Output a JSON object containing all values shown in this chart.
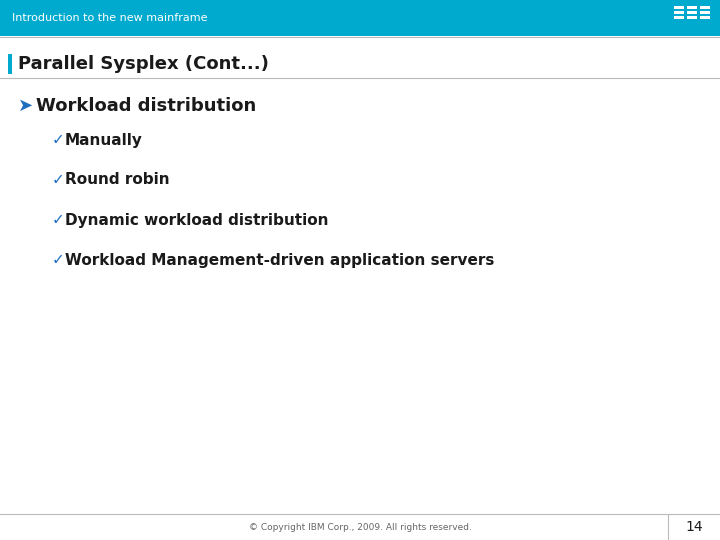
{
  "header_text": "Introduction to the new mainframe",
  "header_bg_color": "#00AACE",
  "header_text_color": "#FFFFFF",
  "slide_bg_color": "#FFFFFF",
  "title_text": "Parallel Sysplex (Cont...)",
  "title_color": "#1A1A1A",
  "title_fontsize": 13,
  "title_bar_color": "#00AACE",
  "separator_color": "#BBBBBB",
  "level1_bullet": "➤",
  "level1_text": "Workload distribution",
  "level1_color": "#1A1A1A",
  "level1_fontsize": 13,
  "level1_bullet_color": "#1F6FBF",
  "level2_bullet": "✓",
  "level2_color": "#1F6FBF",
  "level2_fontsize": 11,
  "level2_text_color": "#1A1A1A",
  "level2_items": [
    "Manually",
    "Round robin",
    "Dynamic workload distribution",
    "Workload Management-driven application servers"
  ],
  "footer_text": "© Copyright IBM Corp., 2009. All rights reserved.",
  "footer_color": "#666666",
  "footer_fontsize": 6.5,
  "page_number": "14",
  "page_number_color": "#1A1A1A",
  "page_number_fontsize": 10,
  "footer_line_color": "#BBBBBB",
  "ibm_logo_color": "#FFFFFF",
  "header_fontsize": 8
}
